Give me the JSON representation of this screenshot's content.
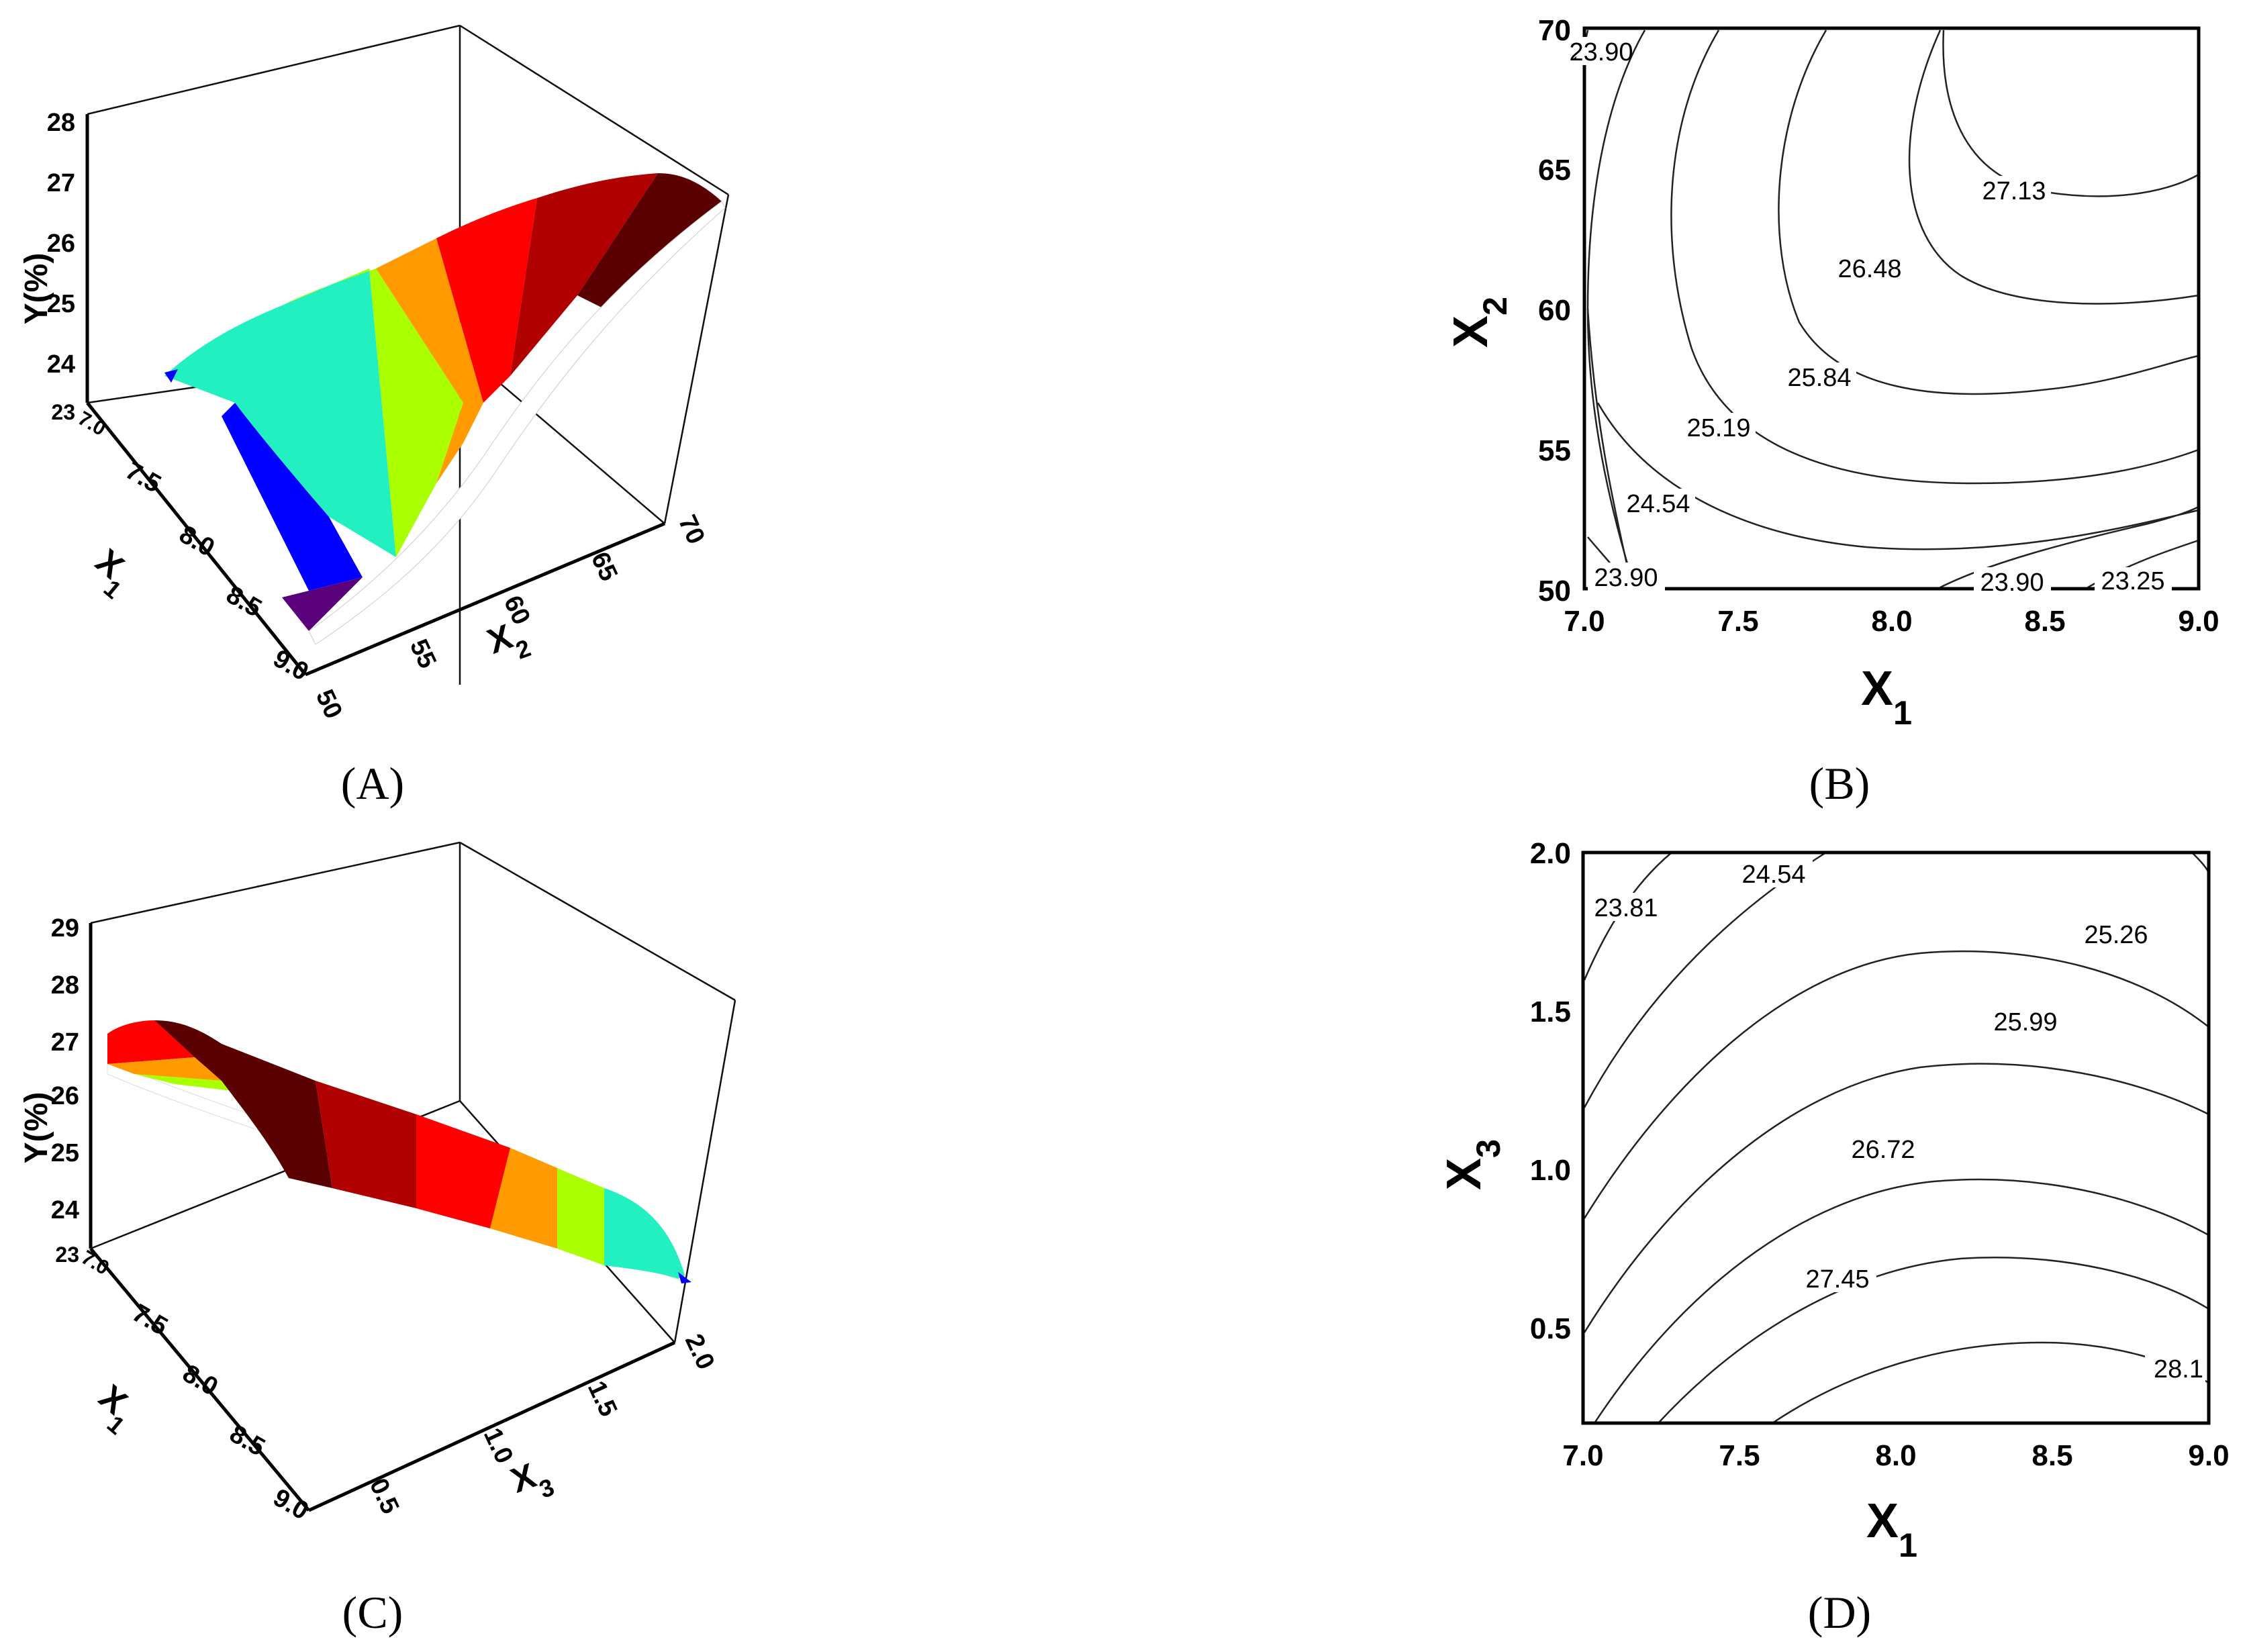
{
  "chart_data": [
    {
      "panel": "A",
      "type": "surface",
      "x": {
        "label": "X1",
        "ticks": [
          "7.0",
          "7.5",
          "8.0",
          "8.5",
          "9.0"
        ]
      },
      "y": {
        "label": "X2",
        "ticks": [
          "50",
          "55",
          "60",
          "65",
          "70"
        ]
      },
      "z": {
        "label": "Y(%)",
        "ticks": [
          "23",
          "24",
          "25",
          "26",
          "27",
          "28"
        ],
        "range": [
          23,
          28
        ]
      },
      "colors": [
        "#5a0000",
        "#b00000",
        "#ff0000",
        "#ff9a00",
        "#aaff00",
        "#22f0c0",
        "#0000ff",
        "#5a007a"
      ]
    },
    {
      "panel": "B",
      "type": "contour",
      "xlabel": "X1",
      "ylabel": "X2",
      "xlim": [
        7.0,
        9.0
      ],
      "ylim": [
        50,
        70
      ],
      "xticks": [
        "7.0",
        "7.5",
        "8.0",
        "8.5",
        "9.0"
      ],
      "yticks": [
        "50",
        "55",
        "60",
        "65",
        "70"
      ],
      "levels": [
        "23.90",
        "24.54",
        "25.19",
        "25.84",
        "26.48",
        "27.13",
        "23.90",
        "23.90",
        "23.25"
      ]
    },
    {
      "panel": "C",
      "type": "surface",
      "x": {
        "label": "X1",
        "ticks": [
          "7.0",
          "7.5",
          "8.0",
          "8.5",
          "9.0"
        ]
      },
      "y": {
        "label": "X3",
        "ticks": [
          "0.5",
          "1.0",
          "1.5",
          "2.0"
        ]
      },
      "z": {
        "label": "Y(%)",
        "ticks": [
          "23",
          "24",
          "25",
          "26",
          "27",
          "28",
          "29"
        ],
        "range": [
          23,
          29
        ]
      },
      "colors": [
        "#5a0000",
        "#b00000",
        "#ff0000",
        "#ff9a00",
        "#aaff00",
        "#22f0c0",
        "#0000ff"
      ]
    },
    {
      "panel": "D",
      "type": "contour",
      "xlabel": "X1",
      "ylabel": "X3",
      "xlim": [
        7.0,
        9.0
      ],
      "ylim": [
        0.2,
        2.0
      ],
      "xticks": [
        "7.0",
        "7.5",
        "8.0",
        "8.5",
        "9.0"
      ],
      "yticks": [
        "0.5",
        "1.0",
        "1.5",
        "2.0"
      ],
      "levels": [
        "23.81",
        "24.54",
        "25.26",
        "25.99",
        "26.72",
        "27.45",
        "28.1"
      ]
    }
  ],
  "panel_labels": [
    "(A)",
    "(B)",
    "(C)",
    "(D)"
  ]
}
